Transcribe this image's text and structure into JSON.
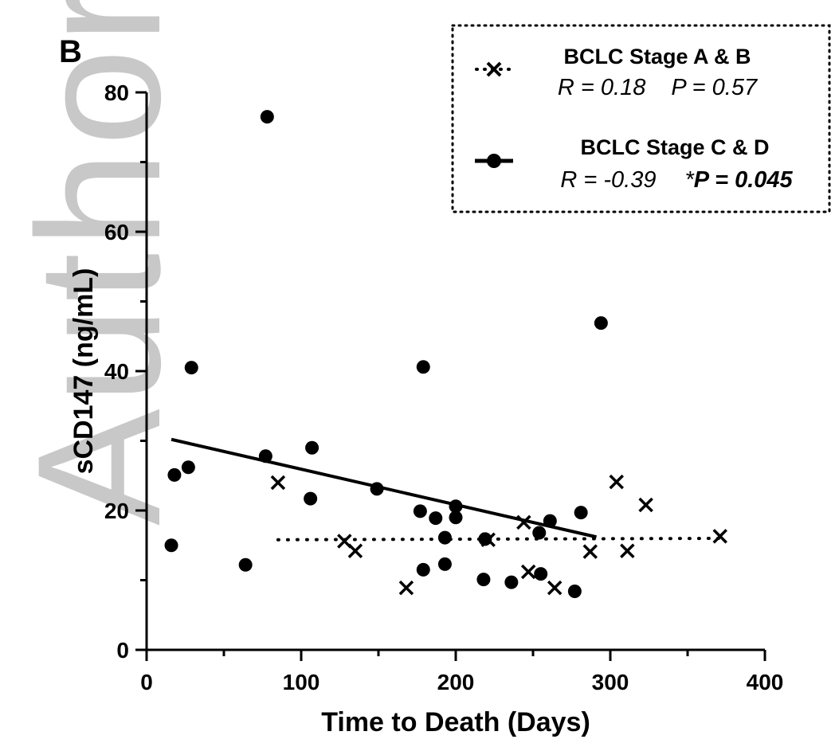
{
  "panel_label": "B",
  "watermark": "Author M",
  "chart_data": {
    "type": "scatter",
    "xlabel": "Time to Death (Days)",
    "ylabel": "sCD147 (ng/mL)",
    "xlim": [
      0,
      400
    ],
    "ylim": [
      0,
      80
    ],
    "xticks": [
      0,
      100,
      200,
      300,
      400
    ],
    "yticks": [
      0,
      20,
      40,
      60,
      80
    ],
    "legend_position": "top-right",
    "series": [
      {
        "name": "BCLC Stage A & B",
        "marker": "x",
        "line_style": "dotted",
        "stats": {
          "r_text": "R = 0.18",
          "p_text": "P = 0.57"
        },
        "fit": {
          "x": [
            85,
            371
          ],
          "y": [
            15.8,
            16.0
          ]
        },
        "points": [
          {
            "x": 85,
            "y": 24.0
          },
          {
            "x": 128,
            "y": 15.6
          },
          {
            "x": 135,
            "y": 14.2
          },
          {
            "x": 168,
            "y": 8.9
          },
          {
            "x": 221,
            "y": 15.8
          },
          {
            "x": 244,
            "y": 18.3
          },
          {
            "x": 247,
            "y": 11.2
          },
          {
            "x": 264,
            "y": 8.9
          },
          {
            "x": 287,
            "y": 14.1
          },
          {
            "x": 304,
            "y": 24.1
          },
          {
            "x": 311,
            "y": 14.2
          },
          {
            "x": 323,
            "y": 20.8
          },
          {
            "x": 371,
            "y": 16.3
          }
        ]
      },
      {
        "name": "BCLC Stage C & D",
        "marker": "circle",
        "line_style": "solid",
        "stats": {
          "r_text": "R = -0.39",
          "p_prefix": "*",
          "p_text": "P = 0.045"
        },
        "fit": {
          "x": [
            16,
            291
          ],
          "y": [
            30.2,
            16.2
          ]
        },
        "points": [
          {
            "x": 16,
            "y": 15.0
          },
          {
            "x": 18,
            "y": 25.1
          },
          {
            "x": 27,
            "y": 26.2
          },
          {
            "x": 29,
            "y": 40.5
          },
          {
            "x": 64,
            "y": 12.2
          },
          {
            "x": 77,
            "y": 27.8
          },
          {
            "x": 78,
            "y": 76.5
          },
          {
            "x": 106,
            "y": 21.7
          },
          {
            "x": 107,
            "y": 29.0
          },
          {
            "x": 149,
            "y": 23.1
          },
          {
            "x": 177,
            "y": 19.9
          },
          {
            "x": 179,
            "y": 11.5
          },
          {
            "x": 179,
            "y": 40.6
          },
          {
            "x": 187,
            "y": 18.9
          },
          {
            "x": 193,
            "y": 16.1
          },
          {
            "x": 193,
            "y": 12.3
          },
          {
            "x": 200,
            "y": 20.6
          },
          {
            "x": 200,
            "y": 19.0
          },
          {
            "x": 218,
            "y": 10.1
          },
          {
            "x": 219,
            "y": 15.9
          },
          {
            "x": 236,
            "y": 9.7
          },
          {
            "x": 254,
            "y": 16.8
          },
          {
            "x": 255,
            "y": 10.9
          },
          {
            "x": 261,
            "y": 18.5
          },
          {
            "x": 277,
            "y": 8.4
          },
          {
            "x": 281,
            "y": 19.7
          },
          {
            "x": 294,
            "y": 46.9
          }
        ]
      }
    ]
  }
}
